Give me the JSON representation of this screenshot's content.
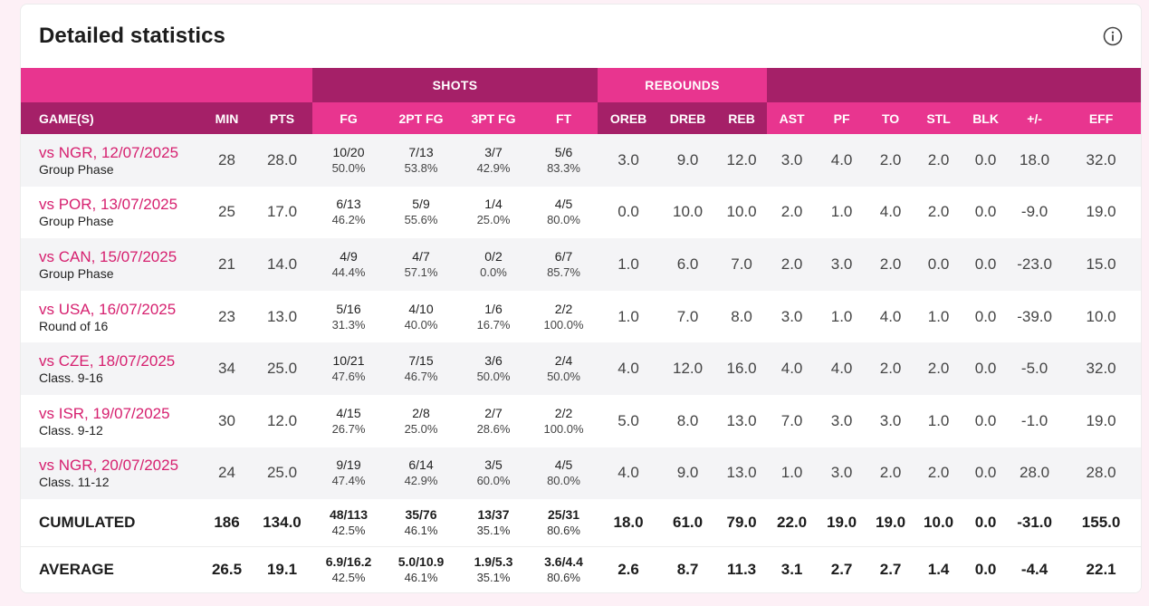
{
  "title": "Detailed statistics",
  "icons": {
    "info": "info-icon"
  },
  "colors": {
    "pink": "#e8358f",
    "dark": "#a52068",
    "link": "#d6206f"
  },
  "groups": {
    "shots": "SHOTS",
    "rebounds": "REBOUNDS"
  },
  "columns": {
    "game": "GAME(S)",
    "min": "MIN",
    "pts": "PTS",
    "fg": "FG",
    "fg2": "2PT FG",
    "fg3": "3PT FG",
    "ft": "FT",
    "oreb": "OREB",
    "dreb": "DREB",
    "reb": "REB",
    "ast": "AST",
    "pf": "PF",
    "to": "TO",
    "stl": "STL",
    "blk": "BLK",
    "pm": "+/-",
    "eff": "EFF"
  },
  "games": [
    {
      "opp": "vs NGR, 12/07/2025",
      "phase": "Group Phase",
      "min": "28",
      "pts": "28.0",
      "fg": "10/20",
      "fg_pct": "50.0%",
      "fg2": "7/13",
      "fg2_pct": "53.8%",
      "fg3": "3/7",
      "fg3_pct": "42.9%",
      "ft": "5/6",
      "ft_pct": "83.3%",
      "oreb": "3.0",
      "dreb": "9.0",
      "reb": "12.0",
      "ast": "3.0",
      "pf": "4.0",
      "to": "2.0",
      "stl": "2.0",
      "blk": "0.0",
      "pm": "18.0",
      "eff": "32.0"
    },
    {
      "opp": "vs POR, 13/07/2025",
      "phase": "Group Phase",
      "min": "25",
      "pts": "17.0",
      "fg": "6/13",
      "fg_pct": "46.2%",
      "fg2": "5/9",
      "fg2_pct": "55.6%",
      "fg3": "1/4",
      "fg3_pct": "25.0%",
      "ft": "4/5",
      "ft_pct": "80.0%",
      "oreb": "0.0",
      "dreb": "10.0",
      "reb": "10.0",
      "ast": "2.0",
      "pf": "1.0",
      "to": "4.0",
      "stl": "2.0",
      "blk": "0.0",
      "pm": "-9.0",
      "eff": "19.0"
    },
    {
      "opp": "vs CAN, 15/07/2025",
      "phase": "Group Phase",
      "min": "21",
      "pts": "14.0",
      "fg": "4/9",
      "fg_pct": "44.4%",
      "fg2": "4/7",
      "fg2_pct": "57.1%",
      "fg3": "0/2",
      "fg3_pct": "0.0%",
      "ft": "6/7",
      "ft_pct": "85.7%",
      "oreb": "1.0",
      "dreb": "6.0",
      "reb": "7.0",
      "ast": "2.0",
      "pf": "3.0",
      "to": "2.0",
      "stl": "0.0",
      "blk": "0.0",
      "pm": "-23.0",
      "eff": "15.0"
    },
    {
      "opp": "vs USA, 16/07/2025",
      "phase": "Round of 16",
      "min": "23",
      "pts": "13.0",
      "fg": "5/16",
      "fg_pct": "31.3%",
      "fg2": "4/10",
      "fg2_pct": "40.0%",
      "fg3": "1/6",
      "fg3_pct": "16.7%",
      "ft": "2/2",
      "ft_pct": "100.0%",
      "oreb": "1.0",
      "dreb": "7.0",
      "reb": "8.0",
      "ast": "3.0",
      "pf": "1.0",
      "to": "4.0",
      "stl": "1.0",
      "blk": "0.0",
      "pm": "-39.0",
      "eff": "10.0"
    },
    {
      "opp": "vs CZE, 18/07/2025",
      "phase": "Class. 9-16",
      "min": "34",
      "pts": "25.0",
      "fg": "10/21",
      "fg_pct": "47.6%",
      "fg2": "7/15",
      "fg2_pct": "46.7%",
      "fg3": "3/6",
      "fg3_pct": "50.0%",
      "ft": "2/4",
      "ft_pct": "50.0%",
      "oreb": "4.0",
      "dreb": "12.0",
      "reb": "16.0",
      "ast": "4.0",
      "pf": "4.0",
      "to": "2.0",
      "stl": "2.0",
      "blk": "0.0",
      "pm": "-5.0",
      "eff": "32.0"
    },
    {
      "opp": "vs ISR, 19/07/2025",
      "phase": "Class. 9-12",
      "min": "30",
      "pts": "12.0",
      "fg": "4/15",
      "fg_pct": "26.7%",
      "fg2": "2/8",
      "fg2_pct": "25.0%",
      "fg3": "2/7",
      "fg3_pct": "28.6%",
      "ft": "2/2",
      "ft_pct": "100.0%",
      "oreb": "5.0",
      "dreb": "8.0",
      "reb": "13.0",
      "ast": "7.0",
      "pf": "3.0",
      "to": "3.0",
      "stl": "1.0",
      "blk": "0.0",
      "pm": "-1.0",
      "eff": "19.0"
    },
    {
      "opp": "vs NGR, 20/07/2025",
      "phase": "Class. 11-12",
      "min": "24",
      "pts": "25.0",
      "fg": "9/19",
      "fg_pct": "47.4%",
      "fg2": "6/14",
      "fg2_pct": "42.9%",
      "fg3": "3/5",
      "fg3_pct": "60.0%",
      "ft": "4/5",
      "ft_pct": "80.0%",
      "oreb": "4.0",
      "dreb": "9.0",
      "reb": "13.0",
      "ast": "1.0",
      "pf": "3.0",
      "to": "2.0",
      "stl": "2.0",
      "blk": "0.0",
      "pm": "28.0",
      "eff": "28.0"
    }
  ],
  "cumulated": {
    "label": "CUMULATED",
    "min": "186",
    "pts": "134.0",
    "fg": "48/113",
    "fg_pct": "42.5%",
    "fg2": "35/76",
    "fg2_pct": "46.1%",
    "fg3": "13/37",
    "fg3_pct": "35.1%",
    "ft": "25/31",
    "ft_pct": "80.6%",
    "oreb": "18.0",
    "dreb": "61.0",
    "reb": "79.0",
    "ast": "22.0",
    "pf": "19.0",
    "to": "19.0",
    "stl": "10.0",
    "blk": "0.0",
    "pm": "-31.0",
    "eff": "155.0"
  },
  "average": {
    "label": "AVERAGE",
    "min": "26.5",
    "pts": "19.1",
    "fg": "6.9/16.2",
    "fg_pct": "42.5%",
    "fg2": "5.0/10.9",
    "fg2_pct": "46.1%",
    "fg3": "1.9/5.3",
    "fg3_pct": "35.1%",
    "ft": "3.6/4.4",
    "ft_pct": "80.6%",
    "oreb": "2.6",
    "dreb": "8.7",
    "reb": "11.3",
    "ast": "3.1",
    "pf": "2.7",
    "to": "2.7",
    "stl": "1.4",
    "blk": "0.0",
    "pm": "-4.4",
    "eff": "22.1"
  }
}
